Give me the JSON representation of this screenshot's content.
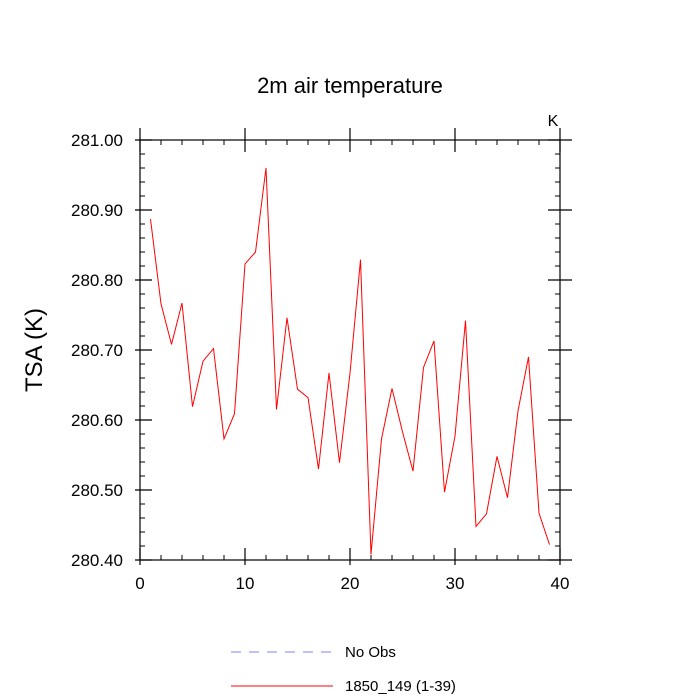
{
  "chart_data": {
    "type": "line",
    "title": "2m air temperature",
    "xlabel": "",
    "ylabel": "TSA  (K)",
    "units_label": "K",
    "xlim": [
      0,
      40
    ],
    "ylim": [
      280.4,
      281.0
    ],
    "x_ticks": [
      0,
      10,
      20,
      30,
      40
    ],
    "y_ticks": [
      "280.40",
      "280.50",
      "280.60",
      "280.70",
      "280.80",
      "280.90",
      "281.00"
    ],
    "grid": false,
    "legend_placement": "bottom-center",
    "series": [
      {
        "name": "No Obs",
        "color": "#8080ff",
        "dashed": true,
        "x": [],
        "y": []
      },
      {
        "name": "1850_149 (1-39)",
        "color": "#ff0000",
        "dashed": false,
        "x": [
          1,
          2,
          3,
          4,
          5,
          6,
          7,
          8,
          9,
          10,
          11,
          12,
          13,
          14,
          15,
          16,
          17,
          18,
          19,
          20,
          21,
          22,
          23,
          24,
          25,
          26,
          27,
          28,
          29,
          30,
          31,
          32,
          33,
          34,
          35,
          36,
          37,
          38,
          39
        ],
        "y": [
          280.887,
          280.766,
          280.708,
          280.767,
          280.619,
          280.684,
          280.702,
          280.573,
          280.609,
          280.823,
          280.84,
          280.96,
          280.615,
          280.746,
          280.644,
          280.632,
          280.53,
          280.667,
          280.539,
          280.667,
          280.829,
          280.408,
          280.573,
          280.645,
          280.583,
          280.527,
          280.675,
          280.713,
          280.497,
          280.577,
          280.742,
          280.448,
          280.466,
          280.548,
          280.489,
          280.613,
          280.69,
          280.467,
          280.422
        ]
      }
    ]
  }
}
